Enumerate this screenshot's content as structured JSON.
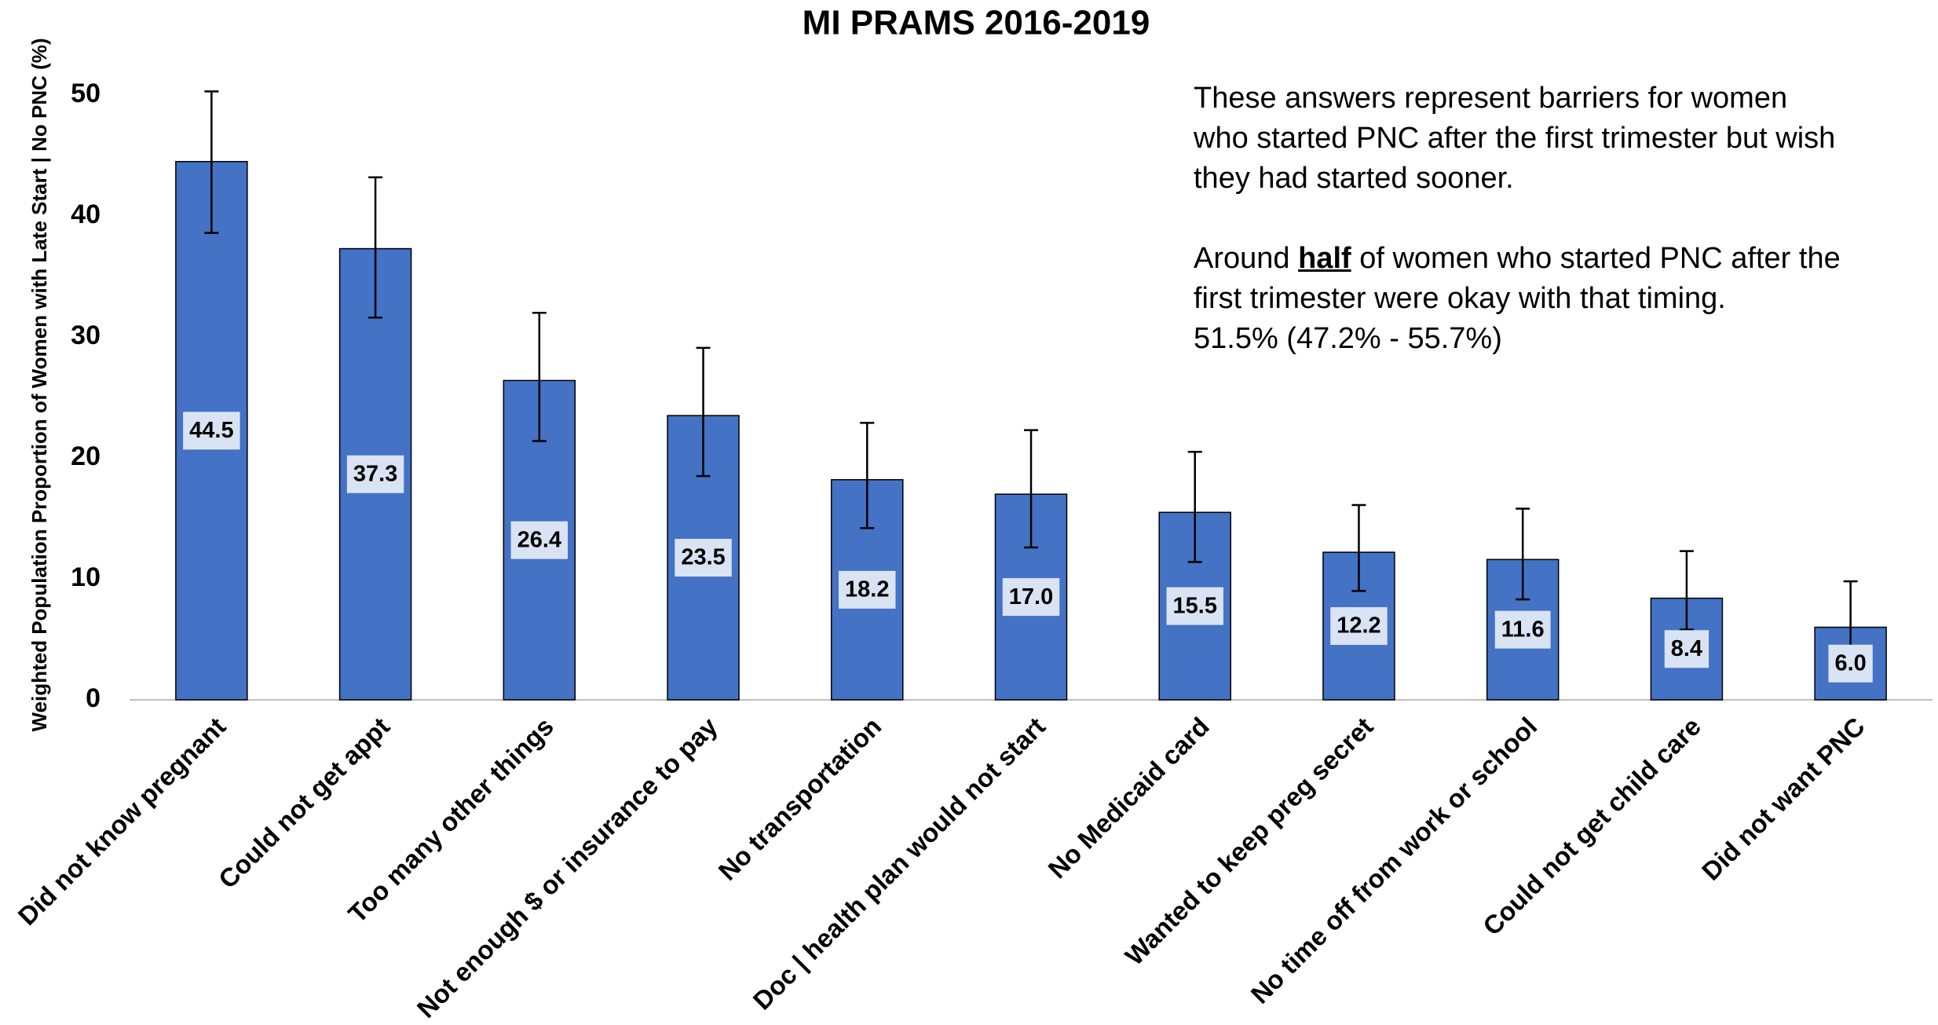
{
  "chart_data": {
    "type": "bar",
    "title": "MI PRAMS 2016-2019",
    "ylabel": "Weighted Population Proportion of Women with Late Start | No PNC (%)",
    "categories": [
      "Did not know pregnant",
      "Could not get appt",
      "Too many other things",
      "Not enough $ or insurance to pay",
      "No transportation",
      "Doc | health plan would not start",
      "No Medicaid card",
      "Wanted to keep preg secret",
      "No time off from work or school",
      "Could not get child care",
      "Did not want PNC"
    ],
    "values": [
      44.5,
      37.3,
      26.4,
      23.5,
      18.2,
      17.0,
      15.5,
      12.2,
      11.6,
      8.4,
      6.0
    ],
    "value_labels": [
      "44.5",
      "37.3",
      "26.4",
      "23.5",
      "18.2",
      "17.0",
      "15.5",
      "12.2",
      "11.6",
      "8.4",
      "6.0"
    ],
    "ci_low": [
      38.6,
      31.6,
      21.4,
      18.5,
      14.2,
      12.6,
      11.4,
      9.0,
      8.3,
      5.8,
      3.5
    ],
    "ci_high": [
      50.3,
      43.2,
      32.0,
      29.1,
      22.9,
      22.3,
      20.5,
      16.1,
      15.8,
      12.3,
      9.8
    ],
    "color": "#4472c4",
    "ylim": [
      0,
      50
    ],
    "yticks": [
      0,
      10,
      20,
      30,
      40,
      50
    ],
    "grid": false,
    "annotation": {
      "paragraph1": "These answers represent barriers for women who started PNC after the first trimester but wish they had started sooner.",
      "paragraph2": [
        "Around ",
        "half",
        " of women who started PNC after the first trimester were okay with that timing."
      ],
      "paragraph3": "51.5% (47.2% - 55.7%)"
    }
  }
}
